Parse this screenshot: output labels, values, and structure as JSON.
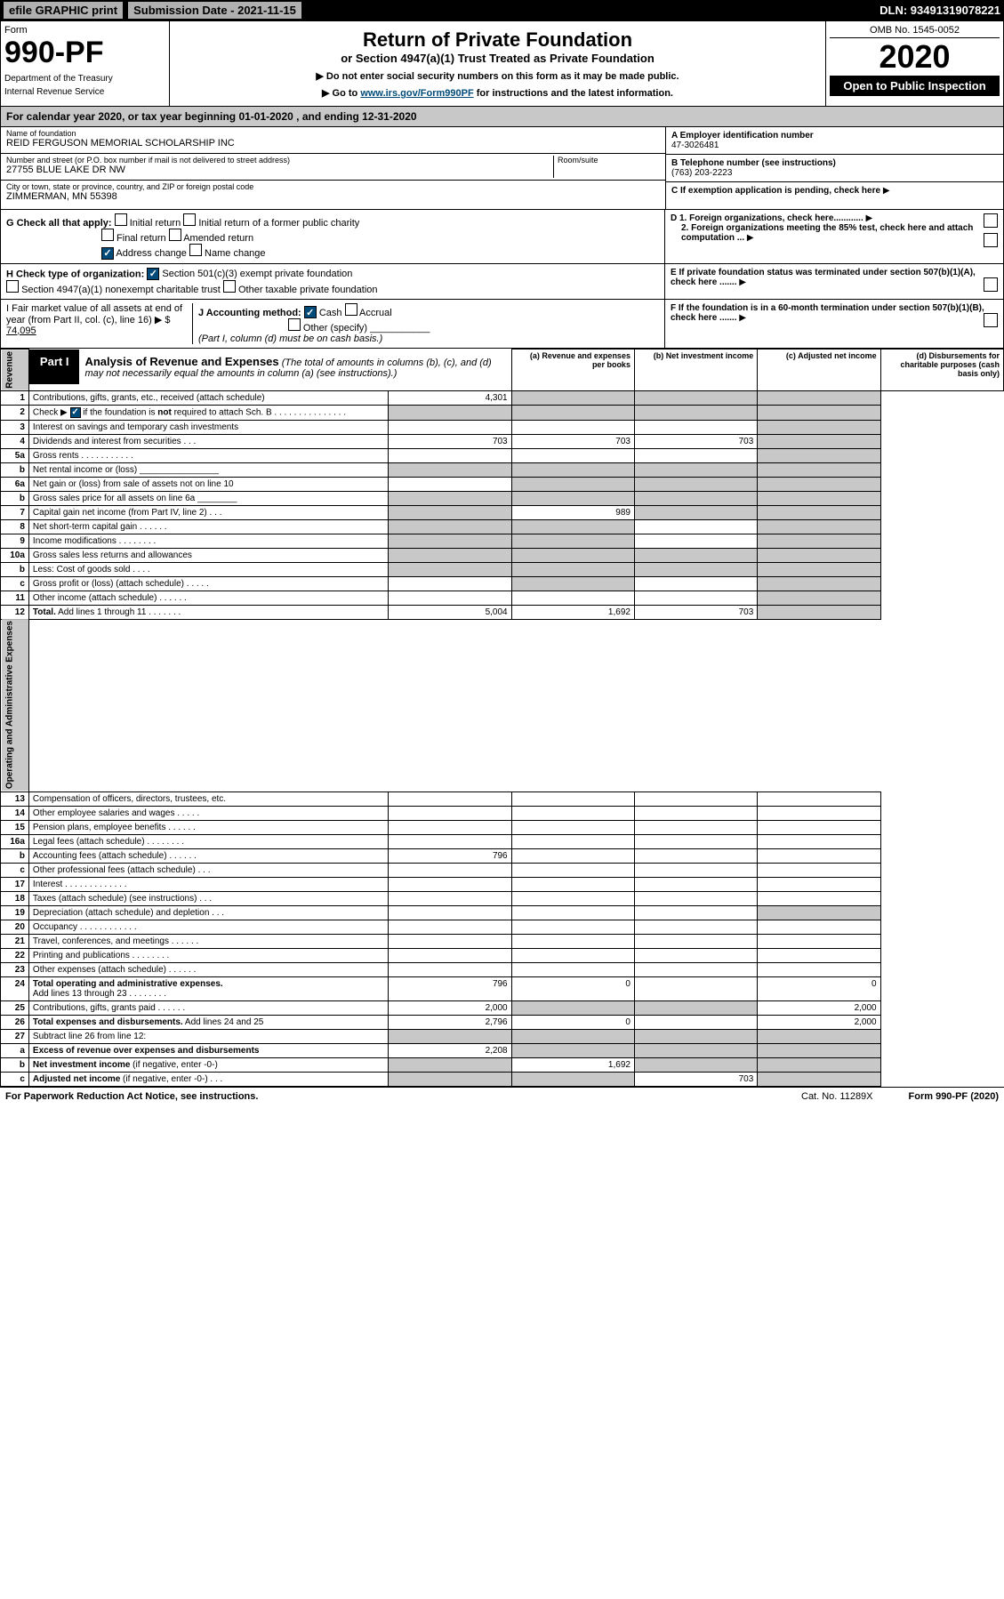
{
  "topbar": {
    "efile": "efile GRAPHIC print",
    "subdate": "Submission Date - 2021-11-15",
    "dln": "DLN: 93491319078221"
  },
  "header": {
    "form_label": "Form",
    "form_num": "990-PF",
    "dept1": "Department of the Treasury",
    "dept2": "Internal Revenue Service",
    "title": "Return of Private Foundation",
    "subtitle1": "or Section 4947(a)(1) Trust Treated as Private Foundation",
    "subtitle2": "▶ Do not enter social security numbers on this form as it may be made public.",
    "subtitle3_pre": "▶ Go to ",
    "subtitle3_link": "www.irs.gov/Form990PF",
    "subtitle3_post": " for instructions and the latest information.",
    "omb": "OMB No. 1545-0052",
    "year": "2020",
    "open": "Open to Public Inspection"
  },
  "cal": "For calendar year 2020, or tax year beginning 01-01-2020                    , and ending 12-31-2020",
  "info": {
    "name_label": "Name of foundation",
    "name": "REID FERGUSON MEMORIAL SCHOLARSHIP INC",
    "addr_label": "Number and street (or P.O. box number if mail is not delivered to street address)",
    "addr": "27755 BLUE LAKE DR NW",
    "room_label": "Room/suite",
    "city_label": "City or town, state or province, country, and ZIP or foreign postal code",
    "city": "ZIMMERMAN, MN  55398",
    "ein_label": "A Employer identification number",
    "ein": "47-3026481",
    "phone_label": "B Telephone number (see instructions)",
    "phone": "(763) 203-2223",
    "c_label": "C If exemption application is pending, check here",
    "d1": "D 1. Foreign organizations, check here............",
    "d2": "2. Foreign organizations meeting the 85% test, check here and attach computation ...",
    "e": "E  If private foundation status was terminated under section 507(b)(1)(A), check here .......",
    "f": "F  If the foundation is in a 60-month termination under section 507(b)(1)(B), check here .......",
    "g_label": "G Check all that apply:",
    "g_opts": [
      "Initial return",
      "Initial return of a former public charity",
      "Final return",
      "Amended return",
      "Address change",
      "Name change"
    ],
    "h_label": "H Check type of organization:",
    "h_opts": [
      "Section 501(c)(3) exempt private foundation",
      "Section 4947(a)(1) nonexempt charitable trust",
      "Other taxable private foundation"
    ],
    "i_label": "I Fair market value of all assets at end of year (from Part II, col. (c), line 16) ▶ $",
    "i_val": "74,095",
    "j_label": "J Accounting method:",
    "j_opts": [
      "Cash",
      "Accrual",
      "Other (specify)"
    ],
    "j_note": "(Part I, column (d) must be on cash basis.)"
  },
  "part1": {
    "tab": "Part I",
    "title": "Analysis of Revenue and Expenses",
    "title_note": "(The total of amounts in columns (b), (c), and (d) may not necessarily equal the amounts in column (a) (see instructions).)",
    "col_a": "(a) Revenue and expenses per books",
    "col_b": "(b) Net investment income",
    "col_c": "(c) Adjusted net income",
    "col_d": "(d) Disbursements for charitable purposes (cash basis only)",
    "side_rev": "Revenue",
    "side_exp": "Operating and Administrative Expenses"
  },
  "rows": [
    {
      "n": "1",
      "d": "",
      "a": "4,301",
      "b": "",
      "c": "",
      "shade_b": true,
      "shade_c": true,
      "shade_d": true
    },
    {
      "n": "2",
      "d": "",
      "a": "",
      "b": "",
      "c": "",
      "shade_a": true,
      "shade_b": true,
      "shade_c": true,
      "shade_d": true
    },
    {
      "n": "3",
      "d": "",
      "a": "",
      "b": "",
      "c": "",
      "shade_d": true
    },
    {
      "n": "4",
      "d": "",
      "a": "703",
      "b": "703",
      "c": "703",
      "shade_d": true
    },
    {
      "n": "5a",
      "d": "",
      "a": "",
      "b": "",
      "c": "",
      "shade_d": true
    },
    {
      "n": "b",
      "d": "",
      "a": "",
      "b": "",
      "c": "",
      "shade_a": true,
      "shade_b": true,
      "shade_c": true,
      "shade_d": true
    },
    {
      "n": "6a",
      "d": "",
      "a": "",
      "b": "",
      "c": "",
      "shade_b": true,
      "shade_c": true,
      "shade_d": true
    },
    {
      "n": "b",
      "d": "",
      "a": "",
      "b": "",
      "c": "",
      "shade_a": true,
      "shade_b": true,
      "shade_c": true,
      "shade_d": true
    },
    {
      "n": "7",
      "d": "",
      "a": "",
      "b": "989",
      "c": "",
      "shade_a": true,
      "shade_c": true,
      "shade_d": true
    },
    {
      "n": "8",
      "d": "",
      "a": "",
      "b": "",
      "c": "",
      "shade_a": true,
      "shade_b": true,
      "shade_d": true
    },
    {
      "n": "9",
      "d": "",
      "a": "",
      "b": "",
      "c": "",
      "shade_a": true,
      "shade_b": true,
      "shade_d": true
    },
    {
      "n": "10a",
      "d": "",
      "a": "",
      "b": "",
      "c": "",
      "shade_a": true,
      "shade_b": true,
      "shade_c": true,
      "shade_d": true
    },
    {
      "n": "b",
      "d": "",
      "a": "",
      "b": "",
      "c": "",
      "shade_a": true,
      "shade_b": true,
      "shade_c": true,
      "shade_d": true
    },
    {
      "n": "c",
      "d": "",
      "a": "",
      "b": "",
      "c": "",
      "shade_b": true,
      "shade_d": true
    },
    {
      "n": "11",
      "d": "",
      "a": "",
      "b": "",
      "c": "",
      "shade_d": true
    },
    {
      "n": "12",
      "d": "",
      "a": "5,004",
      "b": "1,692",
      "c": "703",
      "bold": true,
      "shade_d": true
    },
    {
      "n": "13",
      "d": "",
      "a": "",
      "b": "",
      "c": ""
    },
    {
      "n": "14",
      "d": "",
      "a": "",
      "b": "",
      "c": ""
    },
    {
      "n": "15",
      "d": "",
      "a": "",
      "b": "",
      "c": ""
    },
    {
      "n": "16a",
      "d": "",
      "a": "",
      "b": "",
      "c": ""
    },
    {
      "n": "b",
      "d": "",
      "a": "796",
      "b": "",
      "c": ""
    },
    {
      "n": "c",
      "d": "",
      "a": "",
      "b": "",
      "c": ""
    },
    {
      "n": "17",
      "d": "",
      "a": "",
      "b": "",
      "c": ""
    },
    {
      "n": "18",
      "d": "",
      "a": "",
      "b": "",
      "c": ""
    },
    {
      "n": "19",
      "d": "",
      "a": "",
      "b": "",
      "c": "",
      "shade_d": true
    },
    {
      "n": "20",
      "d": "",
      "a": "",
      "b": "",
      "c": ""
    },
    {
      "n": "21",
      "d": "",
      "a": "",
      "b": "",
      "c": ""
    },
    {
      "n": "22",
      "d": "",
      "a": "",
      "b": "",
      "c": ""
    },
    {
      "n": "23",
      "d": "",
      "a": "",
      "b": "",
      "c": ""
    },
    {
      "n": "24",
      "d": "0",
      "a": "796",
      "b": "0",
      "c": "",
      "bold": true
    },
    {
      "n": "25",
      "d": "2,000",
      "a": "2,000",
      "b": "",
      "c": "",
      "shade_b": true,
      "shade_c": true
    },
    {
      "n": "26",
      "d": "2,000",
      "a": "2,796",
      "b": "0",
      "c": "",
      "bold": true
    },
    {
      "n": "27",
      "d": "",
      "a": "",
      "b": "",
      "c": "",
      "shade_a": true,
      "shade_b": true,
      "shade_c": true,
      "shade_d": true
    },
    {
      "n": "a",
      "d": "",
      "a": "2,208",
      "b": "",
      "c": "",
      "bold": true,
      "shade_b": true,
      "shade_c": true,
      "shade_d": true
    },
    {
      "n": "b",
      "d": "",
      "a": "",
      "b": "1,692",
      "c": "",
      "bold": true,
      "shade_a": true,
      "shade_c": true,
      "shade_d": true
    },
    {
      "n": "c",
      "d": "",
      "a": "",
      "b": "",
      "c": "703",
      "bold": true,
      "shade_a": true,
      "shade_b": true,
      "shade_d": true
    }
  ],
  "footer": {
    "left": "For Paperwork Reduction Act Notice, see instructions.",
    "mid": "Cat. No. 11289X",
    "right": "Form 990-PF (2020)"
  },
  "colors": {
    "shade": "#c8c8c8",
    "black": "#000000",
    "link": "#004b7a"
  }
}
